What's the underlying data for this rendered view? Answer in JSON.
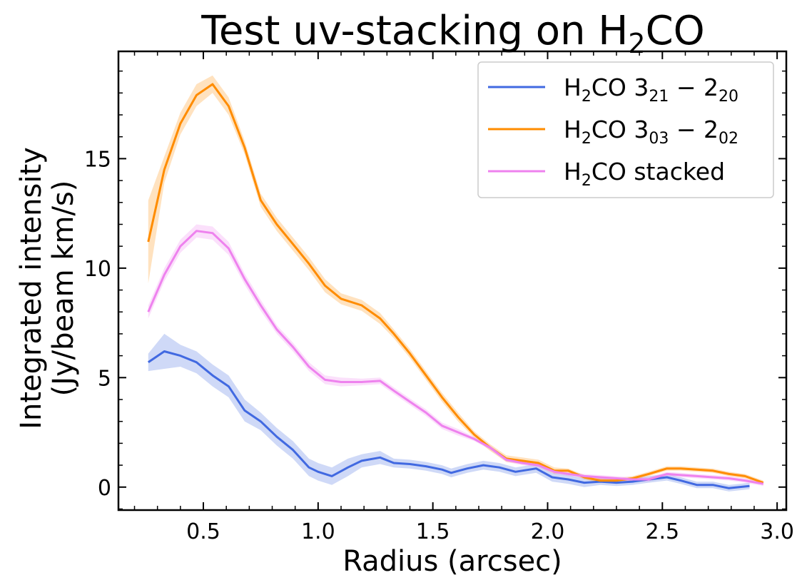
{
  "chart_data": {
    "type": "line",
    "title_parts": [
      "Test uv-stacking on H",
      "2",
      "CO"
    ],
    "xlabel": "Radius (arcsec)",
    "ylabel_lines": [
      "Integrated intensity",
      "(Jy/beam km/s)"
    ],
    "xlim": [
      0.13,
      3.04
    ],
    "ylim": [
      -1.05,
      19.9
    ],
    "x_ticks": [
      0.5,
      1.0,
      1.5,
      2.0,
      2.5,
      3.0
    ],
    "x_tick_labels": [
      "0.5",
      "1.0",
      "1.5",
      "2.0",
      "2.5",
      "3.0"
    ],
    "y_ticks": [
      0,
      5,
      10,
      15
    ],
    "y_tick_labels": [
      "0",
      "5",
      "10",
      "15"
    ],
    "grid": false,
    "legend_position": "top-right",
    "series": [
      {
        "key": "h2co-321-220",
        "legend": {
          "a": "H",
          "a_sub": "2",
          "b": "CO 3",
          "b_sub": "21",
          "c": " − 2",
          "c_sub": "20"
        },
        "color": "#4169e1",
        "x": [
          0.26,
          0.33,
          0.4,
          0.47,
          0.54,
          0.61,
          0.68,
          0.75,
          0.82,
          0.89,
          0.96,
          1.0,
          1.06,
          1.13,
          1.19,
          1.27,
          1.33,
          1.4,
          1.47,
          1.54,
          1.58,
          1.65,
          1.72,
          1.79,
          1.86,
          1.95,
          2.02,
          2.09,
          2.16,
          2.23,
          2.3,
          2.37,
          2.44,
          2.52,
          2.58,
          2.65,
          2.72,
          2.79,
          2.88
        ],
        "y": [
          5.7,
          6.2,
          6.0,
          5.7,
          5.1,
          4.6,
          3.5,
          3.0,
          2.3,
          1.7,
          0.9,
          0.7,
          0.5,
          0.9,
          1.2,
          1.35,
          1.1,
          1.05,
          0.95,
          0.8,
          0.65,
          0.85,
          1.0,
          0.9,
          0.7,
          0.85,
          0.45,
          0.35,
          0.2,
          0.25,
          0.2,
          0.25,
          0.35,
          0.45,
          0.3,
          0.1,
          0.1,
          -0.05,
          0.05
        ],
        "err": [
          0.4,
          0.8,
          0.5,
          0.5,
          0.5,
          0.5,
          0.5,
          0.4,
          0.4,
          0.4,
          0.4,
          0.4,
          0.4,
          0.4,
          0.3,
          0.3,
          0.2,
          0.2,
          0.2,
          0.2,
          0.2,
          0.2,
          0.2,
          0.2,
          0.2,
          0.2,
          0.2,
          0.2,
          0.2,
          0.15,
          0.15,
          0.15,
          0.15,
          0.15,
          0.15,
          0.15,
          0.15,
          0.15,
          0.15
        ]
      },
      {
        "key": "h2co-303-202",
        "legend": {
          "a": "H",
          "a_sub": "2",
          "b": "CO 3",
          "b_sub": "03",
          "c": " − 2",
          "c_sub": "02"
        },
        "color": "#ff8c00",
        "x": [
          0.26,
          0.33,
          0.4,
          0.47,
          0.54,
          0.61,
          0.68,
          0.75,
          0.82,
          0.89,
          0.96,
          1.03,
          1.1,
          1.19,
          1.27,
          1.33,
          1.4,
          1.47,
          1.54,
          1.61,
          1.68,
          1.75,
          1.82,
          1.89,
          1.96,
          2.03,
          2.09,
          2.16,
          2.23,
          2.3,
          2.37,
          2.44,
          2.52,
          2.58,
          2.65,
          2.72,
          2.79,
          2.86,
          2.94
        ],
        "y": [
          11.2,
          14.5,
          16.6,
          17.9,
          18.4,
          17.4,
          15.5,
          13.1,
          12.0,
          11.1,
          10.2,
          9.2,
          8.6,
          8.3,
          7.7,
          7.0,
          6.1,
          5.1,
          4.1,
          3.2,
          2.4,
          1.8,
          1.3,
          1.2,
          1.1,
          0.75,
          0.75,
          0.45,
          0.3,
          0.3,
          0.4,
          0.6,
          0.85,
          0.85,
          0.8,
          0.75,
          0.6,
          0.5,
          0.2
        ],
        "err": [
          1.9,
          0.6,
          0.5,
          0.5,
          0.4,
          0.4,
          0.3,
          0.3,
          0.3,
          0.3,
          0.3,
          0.3,
          0.25,
          0.25,
          0.25,
          0.2,
          0.2,
          0.2,
          0.2,
          0.2,
          0.15,
          0.15,
          0.15,
          0.15,
          0.15,
          0.15,
          0.1,
          0.1,
          0.1,
          0.1,
          0.1,
          0.1,
          0.1,
          0.1,
          0.1,
          0.1,
          0.1,
          0.1,
          0.1
        ]
      },
      {
        "key": "h2co-stacked",
        "legend": {
          "a": "H",
          "a_sub": "2",
          "b": "CO stacked",
          "b_sub": "",
          "c": "",
          "c_sub": ""
        },
        "color": "#ee82ee",
        "x": [
          0.26,
          0.33,
          0.4,
          0.47,
          0.54,
          0.61,
          0.68,
          0.75,
          0.82,
          0.89,
          0.96,
          1.03,
          1.1,
          1.19,
          1.27,
          1.33,
          1.4,
          1.47,
          1.54,
          1.61,
          1.68,
          1.75,
          1.82,
          1.89,
          1.96,
          2.03,
          2.09,
          2.16,
          2.23,
          2.3,
          2.37,
          2.44,
          2.52,
          2.58,
          2.65,
          2.72,
          2.79,
          2.86,
          2.94
        ],
        "y": [
          8.0,
          9.7,
          11.0,
          11.7,
          11.6,
          10.9,
          9.5,
          8.3,
          7.2,
          6.4,
          5.5,
          4.9,
          4.8,
          4.8,
          4.85,
          4.4,
          3.9,
          3.4,
          2.8,
          2.5,
          2.2,
          1.8,
          1.25,
          1.1,
          1.0,
          0.7,
          0.6,
          0.5,
          0.45,
          0.4,
          0.35,
          0.35,
          0.6,
          0.55,
          0.5,
          0.45,
          0.4,
          0.3,
          0.15
        ],
        "err": [
          0.3,
          0.3,
          0.3,
          0.3,
          0.3,
          0.3,
          0.25,
          0.25,
          0.2,
          0.2,
          0.2,
          0.2,
          0.2,
          0.15,
          0.15,
          0.15,
          0.15,
          0.15,
          0.15,
          0.15,
          0.1,
          0.1,
          0.1,
          0.1,
          0.1,
          0.1,
          0.1,
          0.1,
          0.1,
          0.1,
          0.1,
          0.1,
          0.1,
          0.1,
          0.1,
          0.1,
          0.1,
          0.1,
          0.1
        ]
      }
    ]
  }
}
